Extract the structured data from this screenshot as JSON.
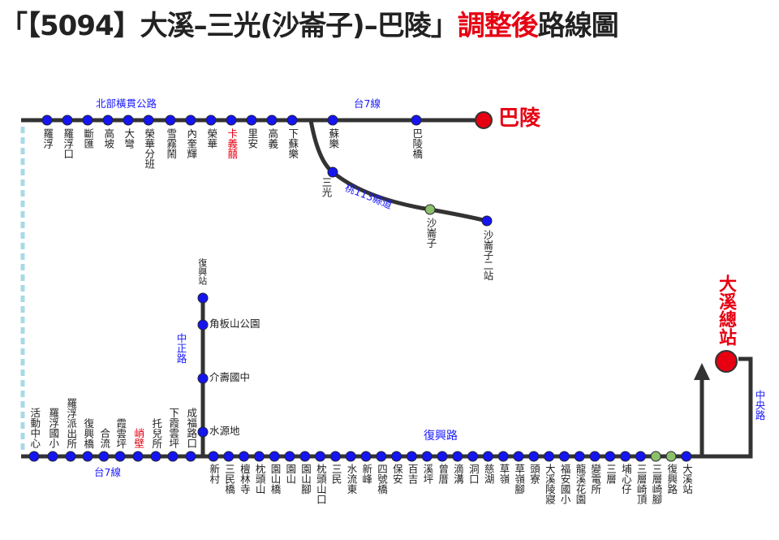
{
  "title": {
    "prefix": "「【5094】大溪–三光(沙崙子)–巴陵」",
    "highlight": "調整後",
    "suffix": "路線圖"
  },
  "top_route": {
    "road_labels": [
      "北部橫貫公路",
      "台7線"
    ],
    "terminal": "巴陵",
    "stops": [
      {
        "name": "羅浮"
      },
      {
        "name": "羅浮口"
      },
      {
        "name": "斷匯"
      },
      {
        "name": "高坡"
      },
      {
        "name": "大彎"
      },
      {
        "name": "榮華分班"
      },
      {
        "name": "雪霧鬧"
      },
      {
        "name": "內奎輝"
      },
      {
        "name": "榮華"
      },
      {
        "name": "卡義囍",
        "color": "#e60012"
      },
      {
        "name": "里安"
      },
      {
        "name": "高義"
      },
      {
        "name": "下蘇樂"
      },
      {
        "name": "蘇樂"
      },
      {
        "name": "巴陵橋"
      }
    ]
  },
  "branch": {
    "road_label": "桃113縣道",
    "stops": [
      {
        "name": "三光"
      },
      {
        "name": "沙崙子",
        "dot": "#8cc06a"
      },
      {
        "name": "沙崙子二站"
      }
    ]
  },
  "zhongzheng": {
    "road_label": "中正路",
    "stops": [
      {
        "name": "復興站"
      },
      {
        "name": "角板山公園"
      },
      {
        "name": "介壽國中"
      },
      {
        "name": "水源地"
      }
    ]
  },
  "bottom_left": {
    "road_label": "台7線",
    "stops": [
      {
        "name": "活動中心"
      },
      {
        "name": "羅浮國小"
      },
      {
        "name": "羅浮派出所"
      },
      {
        "name": "復興橋"
      },
      {
        "name": "合流"
      },
      {
        "name": "霞雲坪"
      },
      {
        "name": "峭壁",
        "color": "#e60012"
      },
      {
        "name": "托兒所"
      },
      {
        "name": "下霞雲坪"
      },
      {
        "name": "成福路口"
      }
    ]
  },
  "bottom_right": {
    "road_label": "復興路",
    "stops": [
      {
        "name": "新村"
      },
      {
        "name": "三民橋"
      },
      {
        "name": "檀林寺"
      },
      {
        "name": "枕頭山"
      },
      {
        "name": "園山橋"
      },
      {
        "name": "園山"
      },
      {
        "name": "園山腳"
      },
      {
        "name": "枕頭山口"
      },
      {
        "name": "三民"
      },
      {
        "name": "水流東"
      },
      {
        "name": "新峰"
      },
      {
        "name": "四號橋"
      },
      {
        "name": "保安"
      },
      {
        "name": "百吉"
      },
      {
        "name": "溪坪"
      },
      {
        "name": "曾厝"
      },
      {
        "name": "滴溝"
      },
      {
        "name": "洞口"
      },
      {
        "name": "慈湖"
      },
      {
        "name": "草嶺"
      },
      {
        "name": "草嶺腳"
      },
      {
        "name": "頭寮"
      },
      {
        "name": "大溪陵寢"
      },
      {
        "name": "福安國小"
      },
      {
        "name": "龍溪花園"
      },
      {
        "name": "變電所"
      },
      {
        "name": "三層"
      },
      {
        "name": "埔心仔"
      },
      {
        "name": "三層崎頂"
      },
      {
        "name": "三層崎腳",
        "dot": "#8cc06a"
      },
      {
        "name": "復興路",
        "dot": "#8cc06a"
      },
      {
        "name": "大溪站"
      }
    ]
  },
  "terminal": {
    "label": "大溪總站",
    "road_label": "中央路"
  }
}
